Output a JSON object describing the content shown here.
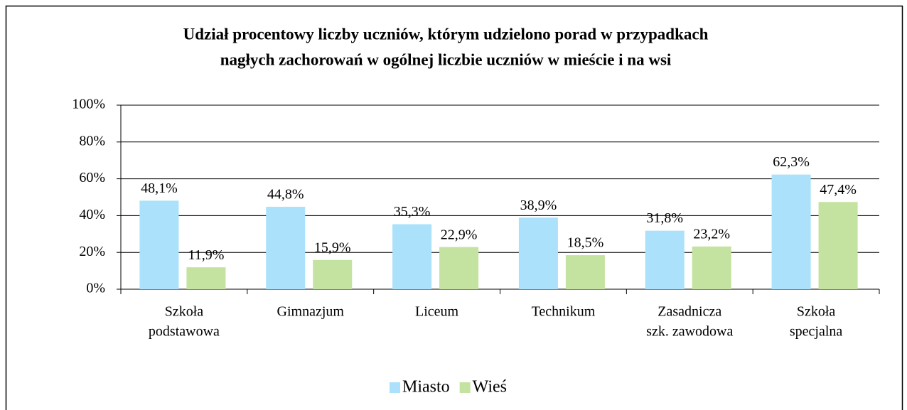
{
  "chart_data": {
    "type": "bar",
    "title": [
      "Udział procentowy liczby uczniów, którym udzielono porad w przypadkach",
      "nagłych zachorowań w ogólnej liczbie uczniów w mieście i na wsi"
    ],
    "categories": [
      [
        "Szkoła",
        "podstawowa"
      ],
      [
        "Gimnazjum"
      ],
      [
        "Liceum"
      ],
      [
        "Technikum"
      ],
      [
        "Zasadnicza",
        "szk. zawodowa"
      ],
      [
        "Szkoła",
        "specjalna"
      ]
    ],
    "series": [
      {
        "name": "Miasto",
        "color": "#abe1fa",
        "values": [
          48.1,
          44.8,
          35.3,
          38.9,
          31.8,
          62.3
        ],
        "value_labels": [
          "48,1%",
          "44,8%",
          "35,3%",
          "38,9%",
          "31,8%",
          "62,3%"
        ]
      },
      {
        "name": "Wieś",
        "color": "#c4e3a0",
        "values": [
          11.9,
          15.9,
          22.9,
          18.5,
          23.2,
          47.4
        ],
        "value_labels": [
          "11,9%",
          "15,9%",
          "22,9%",
          "18,5%",
          "23,2%",
          "47,4%"
        ]
      }
    ],
    "ylim": [
      0,
      100
    ],
    "yticks": [
      {
        "value": 0,
        "label": "0%"
      },
      {
        "value": 20,
        "label": "20%"
      },
      {
        "value": 40,
        "label": "40%"
      },
      {
        "value": 60,
        "label": "60%"
      },
      {
        "value": 80,
        "label": "80%"
      },
      {
        "value": 100,
        "label": "100%"
      }
    ],
    "grid": true,
    "legend": "bottom"
  }
}
